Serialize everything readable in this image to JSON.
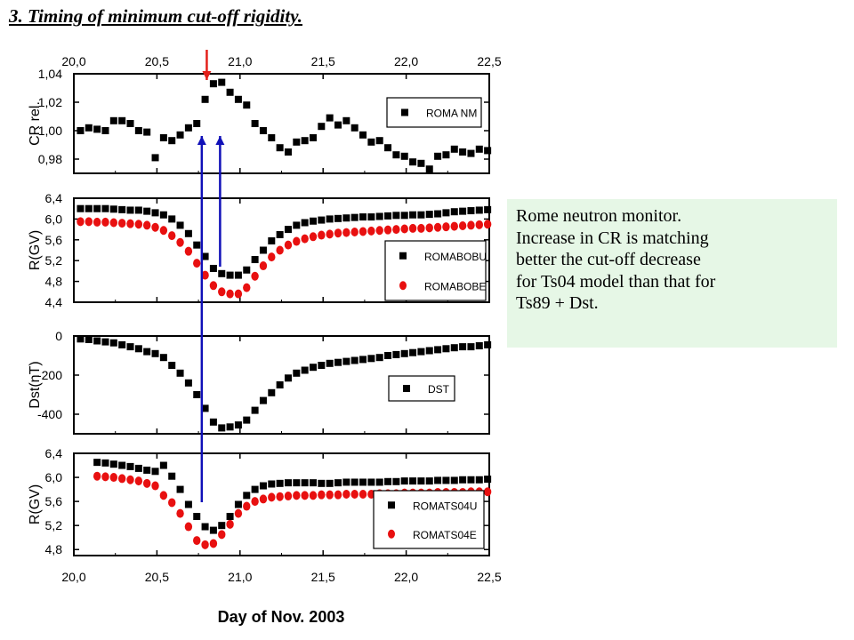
{
  "slide": {
    "title": "3. Timing of minimum cut-off rigidity.",
    "note_lines": [
      "Rome neutron monitor.",
      "Increase in CR is matching",
      "better the cut-off decrease",
      "for Ts04 model than that for",
      "Ts89 + Dst."
    ]
  },
  "chart_data": {
    "type": "scatter",
    "xlabel": "Day of Nov. 2003",
    "xlim": [
      20.0,
      22.5
    ],
    "x_ticks": [
      "20,0",
      "20,5",
      "21,0",
      "21,5",
      "22,0",
      "22,5"
    ],
    "colors": {
      "black": "#000000",
      "red": "#e81010",
      "arrow_red": "#e3201a",
      "arrow_blue": "#1010b8"
    },
    "panels": [
      {
        "ylabel": "CR rel.",
        "ylim": [
          0.97,
          1.04
        ],
        "y_ticks": [
          "0,98",
          "1,00",
          "1,02",
          "1,04"
        ],
        "series": [
          {
            "name": "ROMA NM",
            "color": "#000000",
            "marker": "square",
            "x": [
              20.04,
              20.09,
              20.14,
              20.19,
              20.24,
              20.29,
              20.34,
              20.39,
              20.44,
              20.49,
              20.54,
              20.59,
              20.64,
              20.69,
              20.74,
              20.79,
              20.84,
              20.89,
              20.94,
              20.99,
              21.04,
              21.09,
              21.14,
              21.19,
              21.24,
              21.29,
              21.34,
              21.39,
              21.44,
              21.49,
              21.54,
              21.59,
              21.64,
              21.69,
              21.74,
              21.79,
              21.84,
              21.89,
              21.94,
              21.99,
              22.04,
              22.09,
              22.14,
              22.19,
              22.24,
              22.29,
              22.34,
              22.39,
              22.44,
              22.49
            ],
            "y": [
              1.0,
              1.002,
              1.001,
              1.0,
              1.007,
              1.007,
              1.005,
              1.0,
              0.999,
              0.981,
              0.995,
              0.993,
              0.997,
              1.002,
              1.005,
              1.022,
              1.033,
              1.034,
              1.027,
              1.022,
              1.018,
              1.005,
              1.0,
              0.995,
              0.988,
              0.985,
              0.992,
              0.993,
              0.995,
              1.003,
              1.009,
              1.004,
              1.007,
              1.002,
              0.997,
              0.992,
              0.993,
              0.988,
              0.983,
              0.982,
              0.978,
              0.977,
              0.973,
              0.982,
              0.983,
              0.987,
              0.985,
              0.984,
              0.987,
              0.986
            ]
          }
        ]
      },
      {
        "ylabel": "R(GV)",
        "ylim": [
          4.4,
          6.4
        ],
        "y_ticks": [
          "4,4",
          "4,8",
          "5,2",
          "5,6",
          "6,0",
          "6,4"
        ],
        "series": [
          {
            "name": "ROMABOBU",
            "color": "#000000",
            "marker": "square",
            "x": [
              20.04,
              20.09,
              20.14,
              20.19,
              20.24,
              20.29,
              20.34,
              20.39,
              20.44,
              20.49,
              20.54,
              20.59,
              20.64,
              20.69,
              20.74,
              20.79,
              20.84,
              20.89,
              20.94,
              20.99,
              21.04,
              21.09,
              21.14,
              21.19,
              21.24,
              21.29,
              21.34,
              21.39,
              21.44,
              21.49,
              21.54,
              21.59,
              21.64,
              21.69,
              21.74,
              21.79,
              21.84,
              21.89,
              21.94,
              21.99,
              22.04,
              22.09,
              22.14,
              22.19,
              22.24,
              22.29,
              22.34,
              22.39,
              22.44,
              22.49
            ],
            "y": [
              6.2,
              6.2,
              6.2,
              6.2,
              6.19,
              6.18,
              6.17,
              6.17,
              6.15,
              6.12,
              6.08,
              6.0,
              5.88,
              5.72,
              5.5,
              5.28,
              5.05,
              4.95,
              4.92,
              4.92,
              5.02,
              5.22,
              5.4,
              5.58,
              5.7,
              5.8,
              5.88,
              5.93,
              5.96,
              5.98,
              6.0,
              6.01,
              6.02,
              6.03,
              6.04,
              6.04,
              6.05,
              6.06,
              6.07,
              6.07,
              6.08,
              6.08,
              6.09,
              6.1,
              6.12,
              6.14,
              6.15,
              6.16,
              6.17,
              6.18
            ]
          },
          {
            "name": "ROMABOBE",
            "color": "#e81010",
            "marker": "circle",
            "x": [
              20.04,
              20.09,
              20.14,
              20.19,
              20.24,
              20.29,
              20.34,
              20.39,
              20.44,
              20.49,
              20.54,
              20.59,
              20.64,
              20.69,
              20.74,
              20.79,
              20.84,
              20.89,
              20.94,
              20.99,
              21.04,
              21.09,
              21.14,
              21.19,
              21.24,
              21.29,
              21.34,
              21.39,
              21.44,
              21.49,
              21.54,
              21.59,
              21.64,
              21.69,
              21.74,
              21.79,
              21.84,
              21.89,
              21.94,
              21.99,
              22.04,
              22.09,
              22.14,
              22.19,
              22.24,
              22.29,
              22.34,
              22.39,
              22.44,
              22.49
            ],
            "y": [
              5.95,
              5.95,
              5.94,
              5.94,
              5.93,
              5.92,
              5.91,
              5.9,
              5.88,
              5.84,
              5.78,
              5.68,
              5.55,
              5.38,
              5.15,
              4.92,
              4.72,
              4.6,
              4.56,
              4.56,
              4.68,
              4.9,
              5.1,
              5.27,
              5.4,
              5.5,
              5.57,
              5.62,
              5.66,
              5.69,
              5.71,
              5.73,
              5.74,
              5.75,
              5.76,
              5.77,
              5.78,
              5.79,
              5.8,
              5.81,
              5.82,
              5.82,
              5.83,
              5.84,
              5.85,
              5.86,
              5.87,
              5.88,
              5.89,
              5.9
            ]
          }
        ]
      },
      {
        "ylabel": "Dst(nT)",
        "ylim": [
          -500,
          0
        ],
        "y_ticks": [
          "-400",
          "-200",
          "0"
        ],
        "series": [
          {
            "name": "DST",
            "color": "#000000",
            "marker": "square",
            "x": [
              20.04,
              20.09,
              20.14,
              20.19,
              20.24,
              20.29,
              20.34,
              20.39,
              20.44,
              20.49,
              20.54,
              20.59,
              20.64,
              20.69,
              20.74,
              20.79,
              20.84,
              20.89,
              20.94,
              20.99,
              21.04,
              21.09,
              21.14,
              21.19,
              21.24,
              21.29,
              21.34,
              21.39,
              21.44,
              21.49,
              21.54,
              21.59,
              21.64,
              21.69,
              21.74,
              21.79,
              21.84,
              21.89,
              21.94,
              21.99,
              22.04,
              22.09,
              22.14,
              22.19,
              22.24,
              22.29,
              22.34,
              22.39,
              22.44,
              22.49
            ],
            "y": [
              -15,
              -18,
              -25,
              -30,
              -35,
              -45,
              -55,
              -65,
              -80,
              -90,
              -110,
              -150,
              -190,
              -240,
              -300,
              -370,
              -440,
              -470,
              -465,
              -455,
              -430,
              -380,
              -330,
              -290,
              -250,
              -215,
              -190,
              -175,
              -160,
              -150,
              -140,
              -135,
              -130,
              -125,
              -120,
              -115,
              -110,
              -100,
              -95,
              -90,
              -85,
              -80,
              -75,
              -70,
              -65,
              -60,
              -55,
              -55,
              -50,
              -45
            ]
          }
        ]
      },
      {
        "ylabel": "R(GV)",
        "ylim": [
          4.7,
          6.4
        ],
        "y_ticks": [
          "4,8",
          "5,2",
          "5,6",
          "6,0",
          "6,4"
        ],
        "series": [
          {
            "name": "ROMATS04U",
            "color": "#000000",
            "marker": "square",
            "x": [
              20.14,
              20.19,
              20.24,
              20.29,
              20.34,
              20.39,
              20.44,
              20.49,
              20.54,
              20.59,
              20.64,
              20.69,
              20.74,
              20.79,
              20.84,
              20.89,
              20.94,
              20.99,
              21.04,
              21.09,
              21.14,
              21.19,
              21.24,
              21.29,
              21.34,
              21.39,
              21.44,
              21.49,
              21.54,
              21.59,
              21.64,
              21.69,
              21.74,
              21.79,
              21.84,
              21.89,
              21.94,
              21.99,
              22.04,
              22.09,
              22.14,
              22.19,
              22.24,
              22.29,
              22.34,
              22.39,
              22.44,
              22.49
            ],
            "y": [
              6.25,
              6.24,
              6.22,
              6.2,
              6.18,
              6.15,
              6.12,
              6.1,
              6.2,
              6.02,
              5.8,
              5.55,
              5.35,
              5.18,
              5.12,
              5.2,
              5.35,
              5.55,
              5.7,
              5.8,
              5.86,
              5.89,
              5.9,
              5.91,
              5.91,
              5.91,
              5.91,
              5.9,
              5.9,
              5.91,
              5.92,
              5.92,
              5.92,
              5.92,
              5.92,
              5.93,
              5.93,
              5.94,
              5.94,
              5.94,
              5.94,
              5.95,
              5.95,
              5.95,
              5.96,
              5.96,
              5.96,
              5.97
            ]
          },
          {
            "name": "ROMATS04E",
            "color": "#e81010",
            "marker": "circle",
            "x": [
              20.14,
              20.19,
              20.24,
              20.29,
              20.34,
              20.39,
              20.44,
              20.49,
              20.54,
              20.59,
              20.64,
              20.69,
              20.74,
              20.79,
              20.84,
              20.89,
              20.94,
              20.99,
              21.04,
              21.09,
              21.14,
              21.19,
              21.24,
              21.29,
              21.34,
              21.39,
              21.44,
              21.49,
              21.54,
              21.59,
              21.64,
              21.69,
              21.74,
              21.79,
              21.84,
              21.89,
              21.94,
              21.99,
              22.04,
              22.09,
              22.14,
              22.19,
              22.24,
              22.29,
              22.34,
              22.39,
              22.44,
              22.49
            ],
            "y": [
              6.02,
              6.01,
              6.0,
              5.98,
              5.96,
              5.94,
              5.9,
              5.86,
              5.7,
              5.58,
              5.4,
              5.18,
              4.95,
              4.88,
              4.9,
              5.05,
              5.22,
              5.4,
              5.52,
              5.6,
              5.64,
              5.67,
              5.68,
              5.69,
              5.7,
              5.7,
              5.7,
              5.71,
              5.71,
              5.71,
              5.72,
              5.72,
              5.72,
              5.72,
              5.73,
              5.73,
              5.73,
              5.74,
              5.74,
              5.74,
              5.74,
              5.75,
              5.75,
              5.75,
              5.75,
              5.76,
              5.76,
              5.76
            ]
          }
        ]
      }
    ],
    "annotations": [
      {
        "kind": "arrow",
        "color": "red",
        "x": 20.8,
        "direction": "down",
        "note": "above CR peak"
      },
      {
        "kind": "arrow",
        "color": "blue",
        "x": 20.77,
        "direction": "up",
        "note": "from ROMATS04 minimum to CR panel"
      },
      {
        "kind": "arrow",
        "color": "blue",
        "x": 20.88,
        "direction": "up",
        "note": "from ROMABOBU minimum to CR panel"
      }
    ]
  }
}
